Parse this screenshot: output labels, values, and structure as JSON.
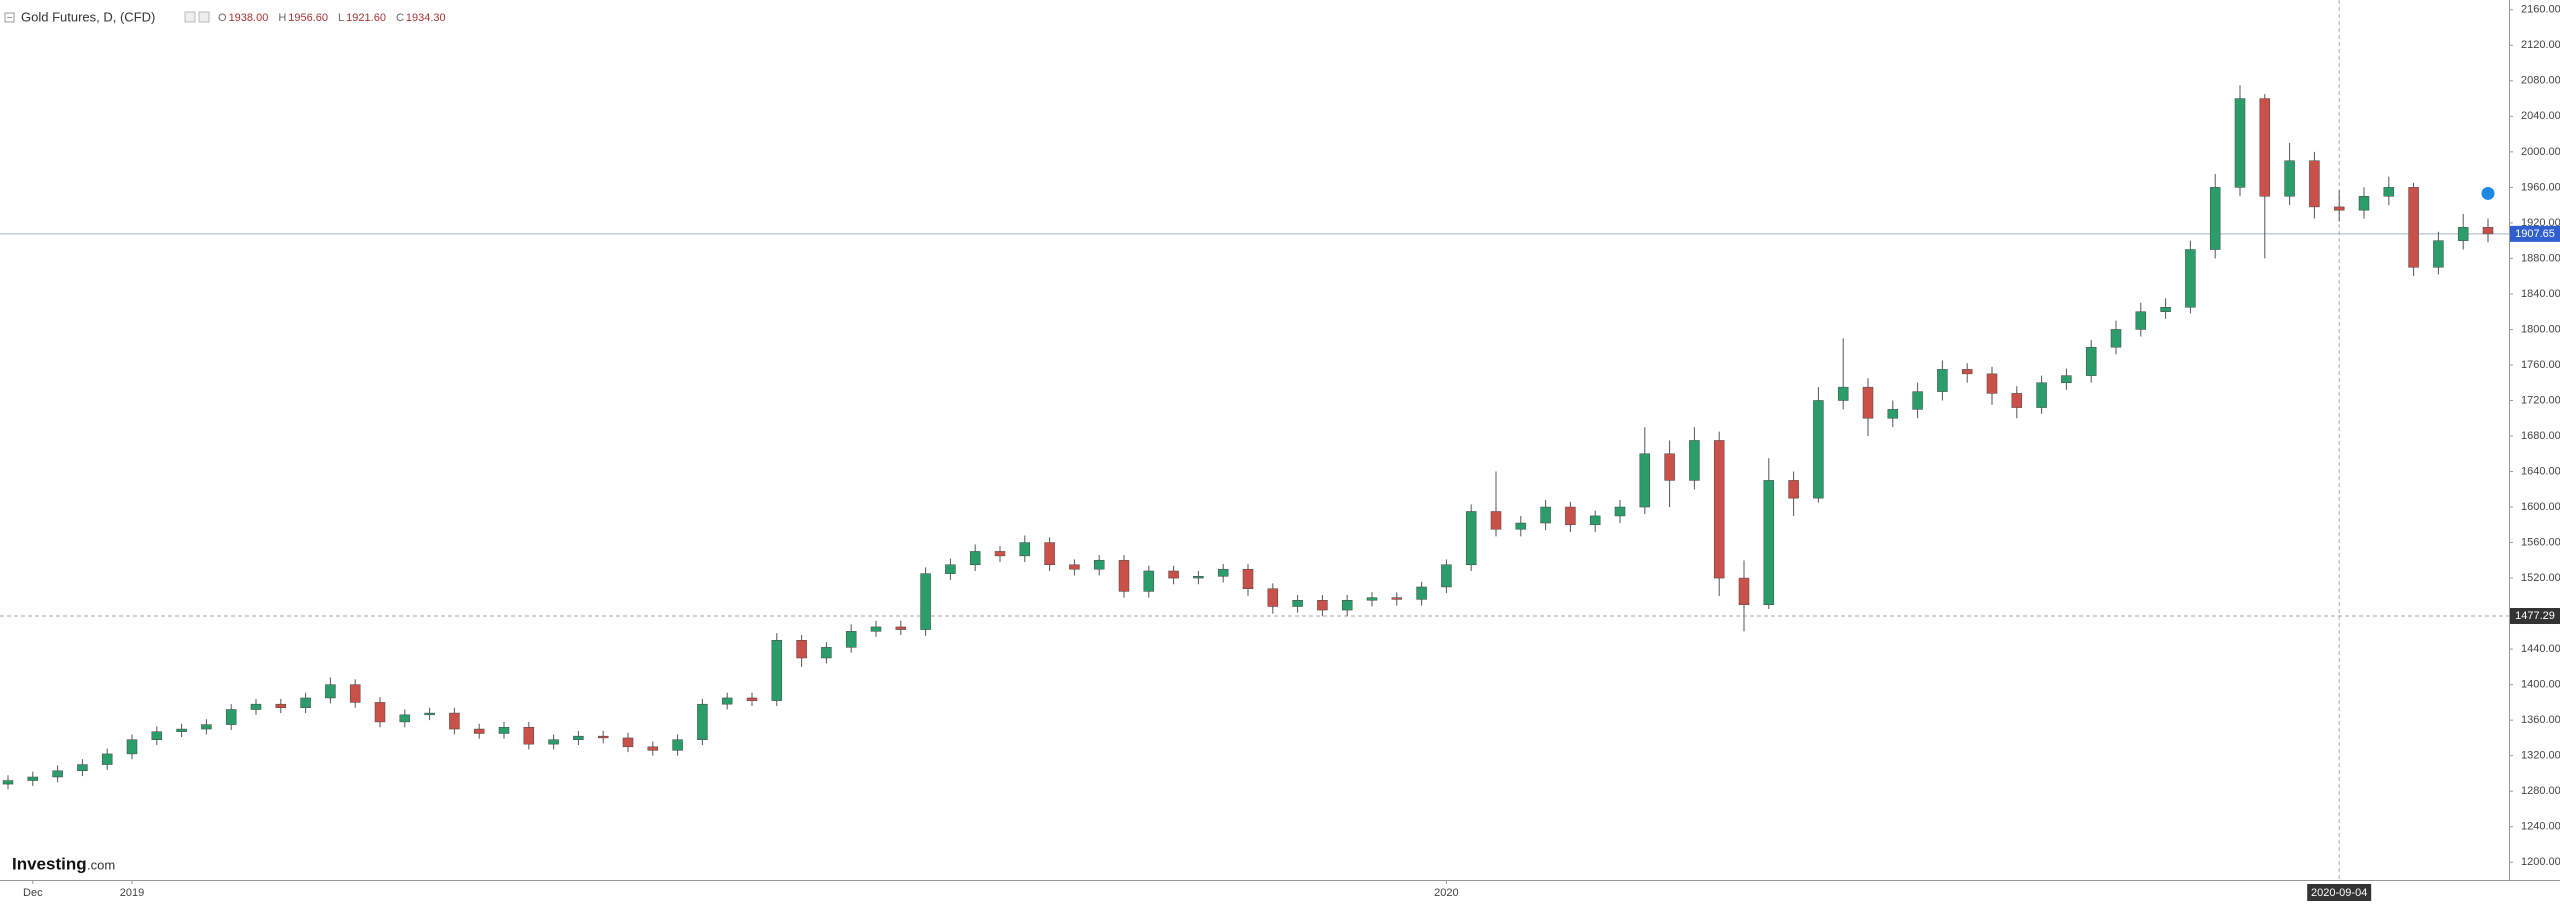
{
  "chart_data": {
    "type": "candlestick",
    "title": "Gold Futures, D, (CFD)",
    "legend_ohlc": [
      {
        "key": "O",
        "value": 1938.0,
        "label": "1938.00"
      },
      {
        "key": "H",
        "value": 1956.6,
        "label": "1956.60"
      },
      {
        "key": "L",
        "value": 1921.6,
        "label": "1921.60"
      },
      {
        "key": "C",
        "value": 1934.3,
        "label": "1934.30"
      }
    ],
    "logo": {
      "brand": "Investing",
      "suffix": ".com"
    },
    "up_color": "#2a9d6a",
    "down_color": "#c9514a",
    "categories": [
      null,
      "Dec",
      null,
      null,
      null,
      "2019",
      null,
      null,
      null,
      null,
      null,
      null,
      null,
      null,
      null,
      null,
      null,
      null,
      null,
      null,
      null,
      null,
      null,
      null,
      null,
      null,
      null,
      null,
      null,
      null,
      null,
      null,
      null,
      null,
      null,
      null,
      null,
      null,
      null,
      null,
      null,
      null,
      null,
      null,
      null,
      null,
      null,
      null,
      null,
      null,
      null,
      null,
      null,
      null,
      null,
      null,
      null,
      null,
      "2020",
      null,
      null,
      null,
      null,
      null,
      null,
      null,
      null,
      null,
      null,
      null,
      null,
      null,
      null,
      null,
      null,
      null,
      null,
      null,
      null,
      null,
      null,
      null,
      null,
      null,
      null,
      null,
      null,
      null,
      null,
      null,
      null,
      null,
      null,
      null,
      "2020-09-04",
      null,
      null,
      null,
      null,
      null,
      null
    ],
    "crosshair_category": 94,
    "crosshair_y": {
      "value": 1477.29,
      "label": "1477.29"
    },
    "last_price": {
      "value": 1907.65,
      "label": "1907.65"
    },
    "open": [
      1288,
      1292,
      1296,
      1303,
      1310,
      1322,
      1338,
      1347,
      1350,
      1355,
      1372,
      1378,
      1374,
      1385,
      1400,
      1380,
      1358,
      1366,
      1368,
      1350,
      1345,
      1352,
      1333,
      1338,
      1342,
      1340,
      1330,
      1326,
      1338,
      1378,
      1385,
      1382,
      1450,
      1430,
      1442,
      1460,
      1465,
      1462,
      1525,
      1535,
      1550,
      1545,
      1560,
      1535,
      1530,
      1540,
      1505,
      1528,
      1520,
      1522,
      1530,
      1508,
      1488,
      1495,
      1484,
      1495,
      1498,
      1496,
      1510,
      1535,
      1595,
      1575,
      1582,
      1600,
      1580,
      1590,
      1600,
      1660,
      1630,
      1675,
      1520,
      1490,
      1630,
      1610,
      1720,
      1735,
      1700,
      1710,
      1730,
      1755,
      1750,
      1728,
      1712,
      1740,
      1748,
      1780,
      1800,
      1820,
      1825,
      1890,
      1960,
      2060,
      1950,
      1990,
      1938,
      1934.3,
      1950,
      1960,
      1870,
      1900,
      1915
    ],
    "high": [
      1298,
      1302,
      1309,
      1316,
      1328,
      1344,
      1353,
      1356,
      1361,
      1378,
      1384,
      1384,
      1391,
      1408,
      1406,
      1386,
      1372,
      1374,
      1374,
      1356,
      1358,
      1358,
      1344,
      1348,
      1348,
      1346,
      1336,
      1344,
      1384,
      1391,
      1391,
      1458,
      1456,
      1448,
      1468,
      1472,
      1472,
      1532,
      1542,
      1558,
      1556,
      1568,
      1566,
      1541,
      1546,
      1546,
      1534,
      1534,
      1528,
      1536,
      1536,
      1514,
      1501,
      1501,
      1501,
      1504,
      1504,
      1516,
      1541,
      1603,
      1640,
      1590,
      1608,
      1606,
      1596,
      1608,
      1690,
      1675,
      1690,
      1685,
      1540,
      1655,
      1640,
      1735,
      1790,
      1745,
      1720,
      1740,
      1765,
      1762,
      1758,
      1736,
      1748,
      1756,
      1788,
      1810,
      1830,
      1835,
      1900,
      1975,
      2075,
      2065,
      2010,
      2000,
      1956.6,
      1960,
      1972,
      1965,
      1910,
      1930,
      1925
    ],
    "low": [
      1282,
      1286,
      1290,
      1297,
      1304,
      1316,
      1332,
      1341,
      1344,
      1349,
      1366,
      1368,
      1368,
      1379,
      1374,
      1352,
      1352,
      1360,
      1344,
      1339,
      1339,
      1327,
      1327,
      1332,
      1334,
      1324,
      1320,
      1320,
      1332,
      1372,
      1376,
      1376,
      1420,
      1424,
      1436,
      1454,
      1456,
      1455,
      1518,
      1528,
      1538,
      1538,
      1528,
      1523,
      1523,
      1498,
      1498,
      1513,
      1513,
      1515,
      1500,
      1480,
      1481,
      1477,
      1477,
      1488,
      1489,
      1489,
      1503,
      1528,
      1567,
      1567,
      1574,
      1572,
      1572,
      1582,
      1592,
      1600,
      1620,
      1500,
      1460,
      1485,
      1590,
      1605,
      1710,
      1680,
      1690,
      1700,
      1720,
      1740,
      1715,
      1700,
      1705,
      1732,
      1740,
      1772,
      1792,
      1812,
      1818,
      1880,
      1950,
      1880,
      1940,
      1925,
      1921.6,
      1925,
      1940,
      1860,
      1862,
      1890,
      1898
    ],
    "close": [
      1292,
      1296,
      1303,
      1310,
      1322,
      1338,
      1347,
      1350,
      1355,
      1372,
      1378,
      1374,
      1385,
      1400,
      1380,
      1358,
      1366,
      1368,
      1350,
      1345,
      1352,
      1333,
      1338,
      1342,
      1340,
      1330,
      1326,
      1338,
      1378,
      1385,
      1382,
      1450,
      1430,
      1442,
      1460,
      1465,
      1462,
      1525,
      1535,
      1550,
      1545,
      1560,
      1535,
      1530,
      1540,
      1505,
      1528,
      1520,
      1522,
      1530,
      1508,
      1488,
      1495,
      1484,
      1495,
      1498,
      1496,
      1510,
      1535,
      1595,
      1575,
      1582,
      1600,
      1580,
      1590,
      1600,
      1660,
      1630,
      1675,
      1520,
      1490,
      1630,
      1610,
      1720,
      1735,
      1700,
      1710,
      1730,
      1755,
      1750,
      1728,
      1712,
      1740,
      1748,
      1780,
      1800,
      1820,
      1825,
      1890,
      1960,
      2060,
      1950,
      1990,
      1938,
      1934.3,
      1950,
      1960,
      1870,
      1900,
      1915,
      1907.65
    ],
    "ylim": [
      1180,
      2171
    ],
    "yticks": [
      {
        "value": 1200,
        "label": "1200.00"
      },
      {
        "value": 1240,
        "label": "1240.00"
      },
      {
        "value": 1280,
        "label": "1280.00"
      },
      {
        "value": 1320,
        "label": "1320.00"
      },
      {
        "value": 1360,
        "label": "1360.00"
      },
      {
        "value": 1400,
        "label": "1400.00"
      },
      {
        "value": 1440,
        "label": "1440.00"
      },
      {
        "value": 1480,
        "label": "1480.00"
      },
      {
        "value": 1520,
        "label": "1520.00"
      },
      {
        "value": 1560,
        "label": "1560.00"
      },
      {
        "value": 1600,
        "label": "1600.00"
      },
      {
        "value": 1640,
        "label": "1640.00"
      },
      {
        "value": 1680,
        "label": "1680.00"
      },
      {
        "value": 1720,
        "label": "1720.00"
      },
      {
        "value": 1760,
        "label": "1760.00"
      },
      {
        "value": 1800,
        "label": "1800.00"
      },
      {
        "value": 1840,
        "label": "1840.00"
      },
      {
        "value": 1880,
        "label": "1880.00"
      },
      {
        "value": 1920,
        "label": "1920.00"
      },
      {
        "value": 1960,
        "label": "1960.00"
      },
      {
        "value": 2000,
        "label": "2000.00"
      },
      {
        "value": 2040,
        "label": "2040.00"
      },
      {
        "value": 2080,
        "label": "2080.00"
      },
      {
        "value": 2120,
        "label": "2120.00"
      },
      {
        "value": 2160,
        "label": "2160.00"
      }
    ],
    "grid": false
  }
}
